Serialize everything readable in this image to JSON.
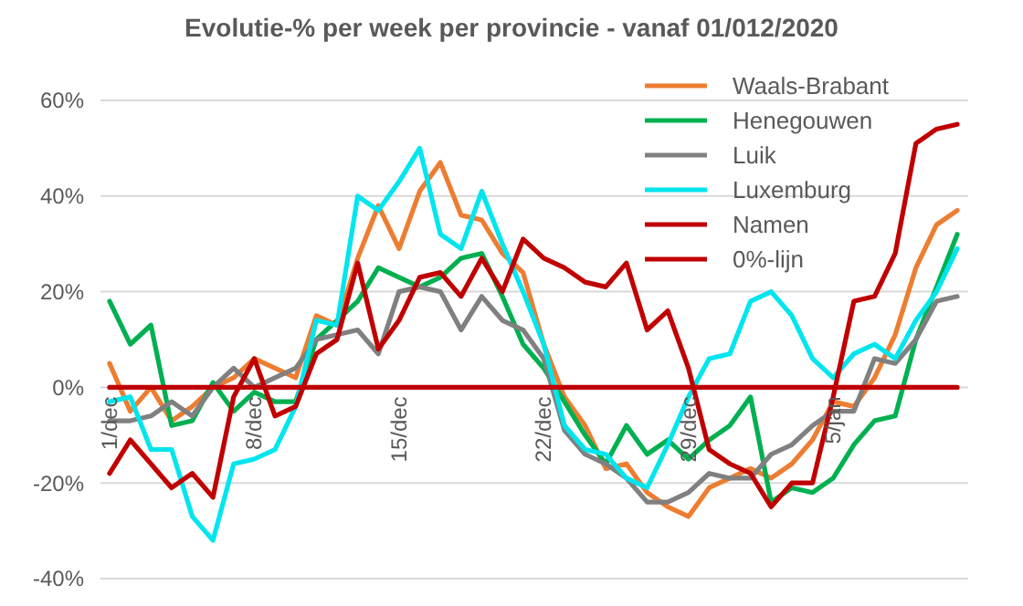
{
  "chart_data": {
    "type": "line",
    "title": "Evolutie-% per week per provincie - vanaf 01/012/2020",
    "categories": [
      "1/dec",
      null,
      null,
      null,
      null,
      null,
      null,
      "8/dec",
      null,
      null,
      null,
      null,
      null,
      null,
      "15/dec",
      null,
      null,
      null,
      null,
      null,
      null,
      "22/dec",
      null,
      null,
      null,
      null,
      null,
      null,
      "29/dec",
      null,
      null,
      null,
      null,
      null,
      null,
      "5/jan",
      null,
      null,
      null,
      null,
      null,
      null
    ],
    "series": [
      {
        "name": "Waals-Brabant",
        "color": "#ed7d31",
        "values": [
          5,
          -5,
          0,
          -7,
          -4,
          0,
          2,
          6,
          4,
          2,
          15,
          13,
          27,
          38,
          29,
          41,
          47,
          36,
          35,
          28,
          24,
          9,
          -2,
          -8,
          -17,
          -16,
          -22,
          -25,
          -27,
          -21,
          -19,
          -17,
          -19,
          -16,
          -11,
          -3,
          -4,
          2,
          11,
          25,
          34,
          37
        ]
      },
      {
        "name": "Henegouwen",
        "color": "#00b050",
        "values": [
          18,
          9,
          13,
          -8,
          -7,
          1,
          -5,
          -1,
          -3,
          -3,
          10,
          14,
          18,
          25,
          23,
          21,
          23,
          27,
          28,
          19,
          9,
          4,
          -3,
          -10,
          -16,
          -8,
          -14,
          -11,
          -15,
          -11,
          -8,
          -2,
          -24,
          -21,
          -22,
          -19,
          -12,
          -7,
          -6,
          10,
          21,
          32
        ]
      },
      {
        "name": "Luik",
        "color": "#808080",
        "values": [
          -7,
          -7,
          -6,
          -3,
          -6,
          0,
          4,
          0,
          2,
          4,
          10,
          11,
          12,
          7,
          20,
          21,
          20,
          12,
          19,
          14,
          12,
          6,
          -9,
          -14,
          -16,
          -19,
          -24,
          -24,
          -22,
          -18,
          -19,
          -19,
          -14,
          -12,
          -8,
          -5,
          -5,
          6,
          5,
          10,
          18,
          19
        ]
      },
      {
        "name": "Luxemburg",
        "color": "#00e5ee",
        "values": [
          -3,
          -2,
          -13,
          -13,
          -27,
          -32,
          -16,
          -15,
          -13,
          -4,
          14,
          13,
          40,
          37,
          43,
          50,
          32,
          29,
          41,
          30,
          20,
          9,
          -8,
          -13,
          -14,
          -19,
          -21,
          -12,
          -2,
          6,
          7,
          18,
          20,
          15,
          6,
          2,
          7,
          9,
          6,
          14,
          20,
          29
        ]
      },
      {
        "name": "Namen",
        "color": "#c00000",
        "values": [
          -18,
          -11,
          -16,
          -21,
          -18,
          -23,
          -2,
          6,
          -6,
          -4,
          7,
          10,
          26,
          8,
          14,
          23,
          24,
          19,
          27,
          20,
          31,
          27,
          25,
          22,
          21,
          26,
          12,
          16,
          4,
          -13,
          -16,
          -18,
          -25,
          -20,
          -20,
          -2,
          18,
          19,
          28,
          51,
          54,
          55
        ]
      },
      {
        "name": "0%-lijn",
        "color": "#c00000",
        "values": [
          0,
          0,
          0,
          0,
          0,
          0,
          0,
          0,
          0,
          0,
          0,
          0,
          0,
          0,
          0,
          0,
          0,
          0,
          0,
          0,
          0,
          0,
          0,
          0,
          0,
          0,
          0,
          0,
          0,
          0,
          0,
          0,
          0,
          0,
          0,
          0,
          0,
          0,
          0,
          0,
          0,
          0
        ]
      }
    ],
    "ylim": [
      -40,
      60
    ],
    "yticks": [
      {
        "value": -40,
        "label": "-40%"
      },
      {
        "value": -20,
        "label": "-20%"
      },
      {
        "value": 0,
        "label": "0%"
      },
      {
        "value": 20,
        "label": "20%"
      },
      {
        "value": 40,
        "label": "40%"
      },
      {
        "value": 60,
        "label": "60%"
      }
    ],
    "grid": "y",
    "legend": "top right",
    "marker": "none",
    "line_style": "solid"
  }
}
